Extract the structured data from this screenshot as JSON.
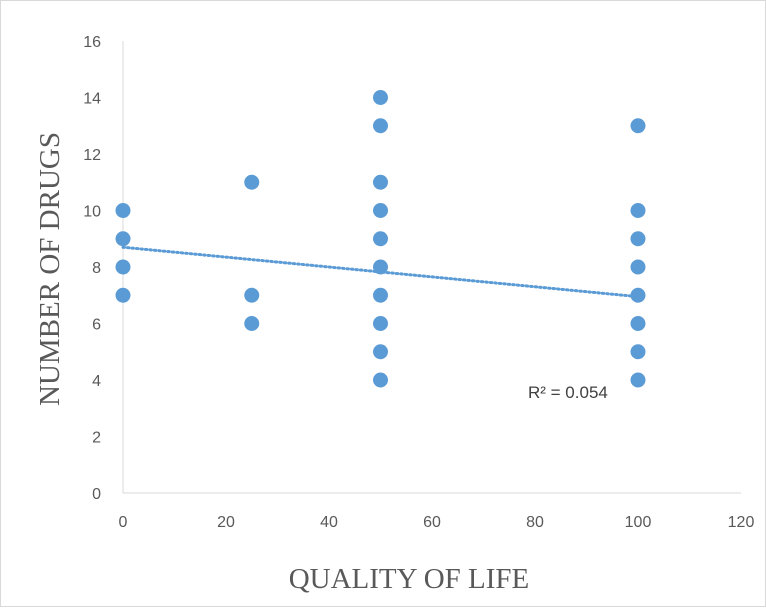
{
  "chart_data": {
    "type": "scatter",
    "title": "",
    "xlabel": "QUALITY OF LIFE",
    "ylabel": "NUMBER OF DRUGS",
    "xlim": [
      0,
      120
    ],
    "ylim": [
      0,
      16
    ],
    "x_ticks": [
      0,
      20,
      40,
      60,
      80,
      100,
      120
    ],
    "y_ticks": [
      0,
      2,
      4,
      6,
      8,
      10,
      12,
      14,
      16
    ],
    "grid": false,
    "legend": "none",
    "marker_color": "#5b9bd5",
    "points": [
      {
        "x": 0,
        "y": 7
      },
      {
        "x": 0,
        "y": 8
      },
      {
        "x": 0,
        "y": 9
      },
      {
        "x": 0,
        "y": 10
      },
      {
        "x": 25,
        "y": 6
      },
      {
        "x": 25,
        "y": 7
      },
      {
        "x": 25,
        "y": 11
      },
      {
        "x": 50,
        "y": 4
      },
      {
        "x": 50,
        "y": 5
      },
      {
        "x": 50,
        "y": 6
      },
      {
        "x": 50,
        "y": 7
      },
      {
        "x": 50,
        "y": 8
      },
      {
        "x": 50,
        "y": 9
      },
      {
        "x": 50,
        "y": 10
      },
      {
        "x": 50,
        "y": 11
      },
      {
        "x": 50,
        "y": 13
      },
      {
        "x": 50,
        "y": 14
      },
      {
        "x": 100,
        "y": 4
      },
      {
        "x": 100,
        "y": 5
      },
      {
        "x": 100,
        "y": 6
      },
      {
        "x": 100,
        "y": 7
      },
      {
        "x": 100,
        "y": 8
      },
      {
        "x": 100,
        "y": 9
      },
      {
        "x": 100,
        "y": 10
      },
      {
        "x": 100,
        "y": 13
      }
    ],
    "trendline": {
      "type": "linear",
      "start": {
        "x": 0,
        "y": 8.7
      },
      "end": {
        "x": 100,
        "y": 6.95
      },
      "r2_label": "R² = 0.054"
    }
  }
}
